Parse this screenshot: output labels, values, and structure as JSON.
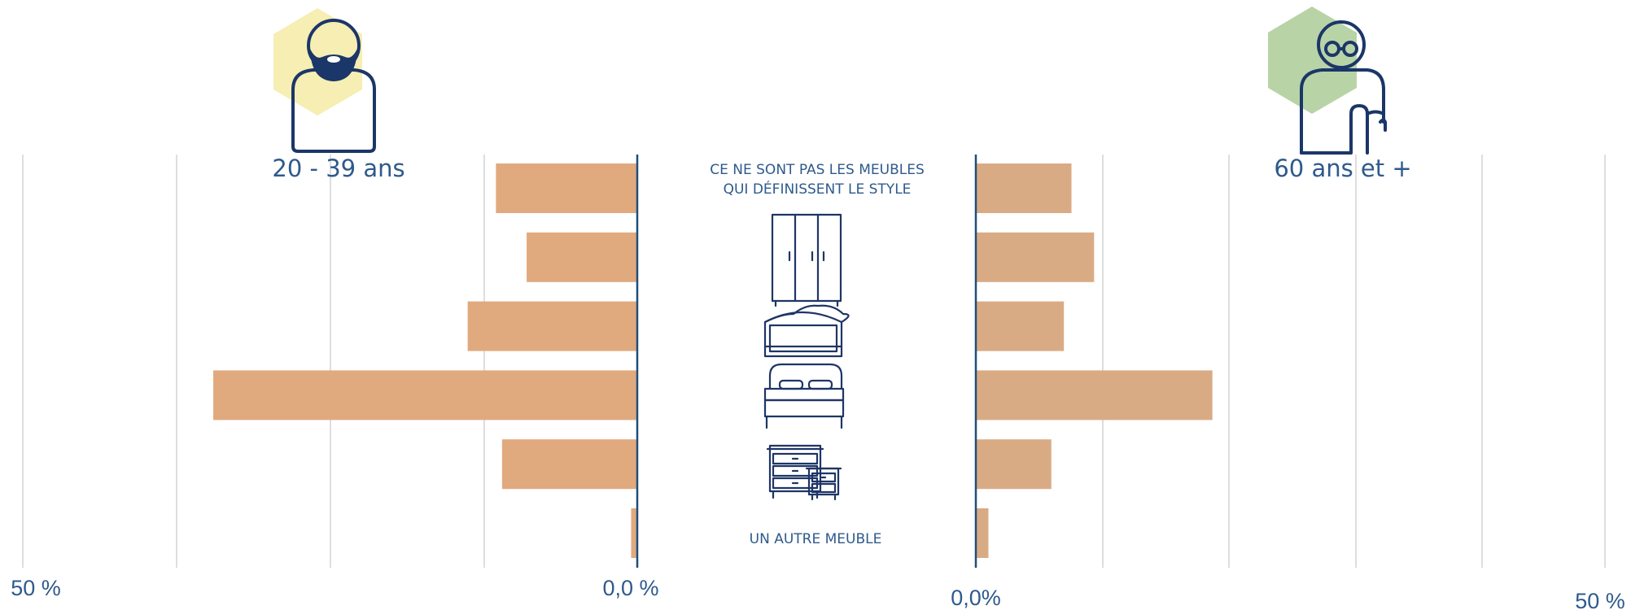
{
  "chart_data": [
    {
      "type": "bar",
      "orientation": "horizontal",
      "direction": "right-to-left",
      "title": "20 - 39 ans",
      "values": [
        11.5,
        9.0,
        13.8,
        34.5,
        11.0,
        0.5
      ],
      "xlim": [
        0,
        50
      ],
      "tick_labels": [
        "50 %",
        "0,0 %"
      ],
      "grid": true,
      "color": "#e1a97e"
    },
    {
      "type": "bar",
      "orientation": "horizontal",
      "direction": "left-to-right",
      "title": "60 ans et +",
      "values": [
        7.6,
        9.4,
        7.0,
        18.8,
        6.0,
        1.0
      ],
      "xlim": [
        0,
        50
      ],
      "tick_labels": [
        "0,0%",
        "50 %"
      ],
      "grid": true,
      "color": "#d9ab85"
    }
  ],
  "categories": {
    "first_label": "CE NE SONT PAS LES MEUBLES QUI DÉFINISSENT LE STYLE",
    "first_lines": [
      "CE NE SONT PAS LES MEUBLES",
      "QUI DÉFINISSENT LE STYLE"
    ],
    "icons": [
      "wardrobe-icon",
      "headboard-icon",
      "bed-icon",
      "dresser-icon"
    ],
    "last_label": "UN AUTRE MEUBLE"
  },
  "personas": {
    "young": {
      "icon": "bearded-man-icon",
      "hex_color": "#f6eeb2"
    },
    "senior": {
      "icon": "older-man-glasses-icon",
      "hex_color": "#b8d4a7"
    }
  },
  "colors": {
    "axis": "#1f4e79",
    "text": "#2e5a8c",
    "grid": "#d4d4d4"
  }
}
